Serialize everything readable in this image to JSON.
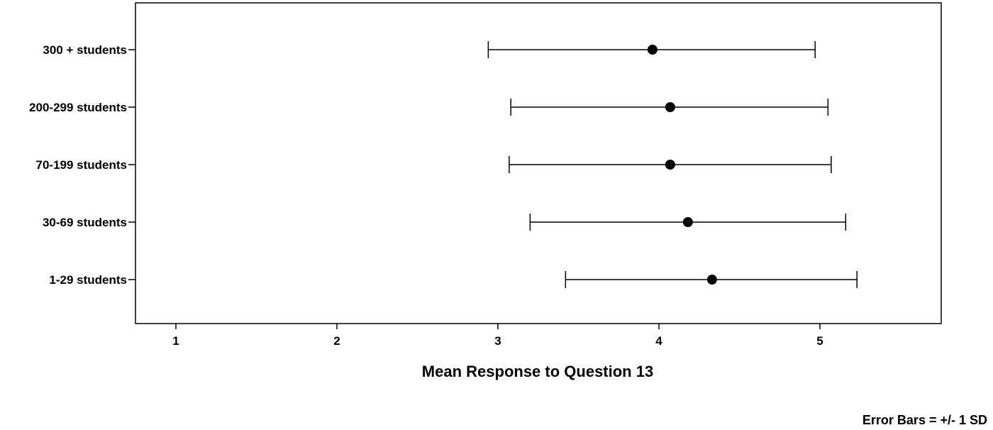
{
  "chart_data": {
    "type": "scatter",
    "orientation": "horizontal",
    "categories": [
      "300 + students",
      "200-299 students",
      "70-199 students",
      "30-69 students",
      "1-29 students"
    ],
    "means": [
      3.96,
      4.07,
      4.07,
      4.18,
      4.33
    ],
    "error_low": [
      2.94,
      3.08,
      3.07,
      3.2,
      3.42
    ],
    "error_high": [
      4.97,
      5.05,
      5.07,
      5.16,
      5.23
    ],
    "x_ticks": [
      "1",
      "2",
      "3",
      "4",
      "5"
    ],
    "xlim": [
      0.75,
      5.75
    ],
    "xlabel": "Mean Response to Question 13",
    "ylabel": "",
    "note": "Error Bars = +/- 1 SD",
    "grid": false,
    "colors": {
      "marker": "#000000",
      "error_bar": "#000000",
      "axis": "#000000"
    }
  }
}
